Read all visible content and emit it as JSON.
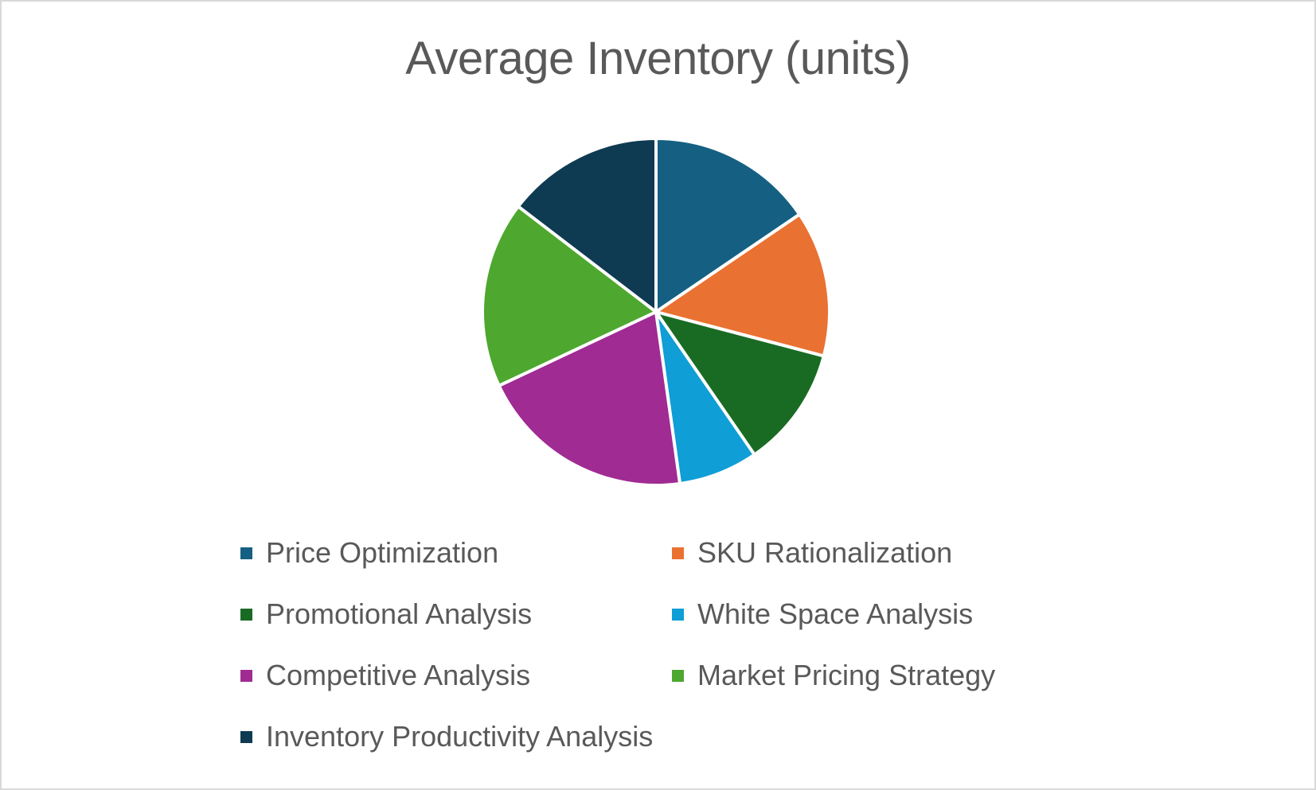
{
  "chart_data": {
    "type": "pie",
    "title": "Average Inventory (units)",
    "categories": [
      "Price Optimization",
      "SKU Rationalization",
      "Promotional Analysis",
      "White Space Analysis",
      "Competitive Analysis",
      "Market Pricing Strategy",
      "Inventory Productivity Analysis"
    ],
    "values": [
      15.5,
      13.6,
      11.3,
      7.4,
      20.2,
      17.4,
      14.6
    ],
    "colors": [
      "#156082",
      "#e97132",
      "#196b24",
      "#0f9ed5",
      "#a02b93",
      "#4ea72e",
      "#0e3a52"
    ],
    "legend_position": "bottom"
  }
}
